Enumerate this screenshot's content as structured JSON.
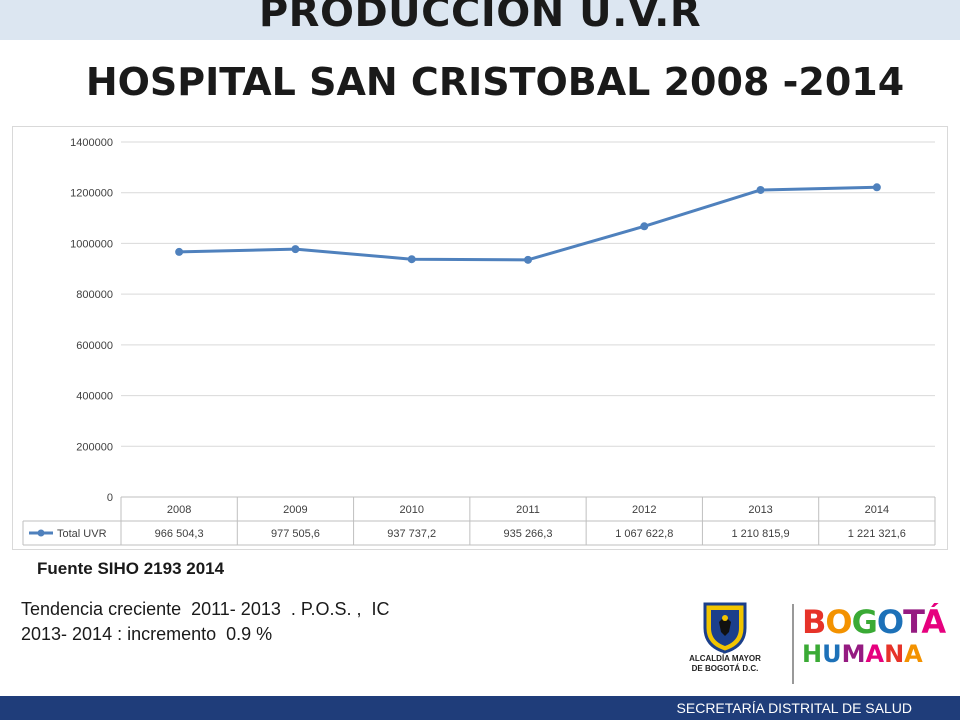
{
  "slide": {
    "title_line1": "PRODUCCION U.V.R",
    "title_line2": "HOSPITAL  SAN CRISTOBAL 2008 -2014",
    "source": "Fuente SIHO 2193 2014",
    "note_line1": "Tendencia creciente  2011- 2013  . P.O.S. ,  IC",
    "note_line2": "2013- 2014 : incremento  0.9 %",
    "footer": "SECRETARÍA DISTRITAL DE SALUD"
  },
  "logos": {
    "crest_label_line1": "ALCALDÍA MAYOR",
    "crest_label_line2": "DE BOGOTÁ D.C.",
    "brand_line1": "BOGOTÁ",
    "brand_line2": "HUMANA",
    "brand_colors": [
      "#e63329",
      "#f39200",
      "#3aaa35",
      "#1d71b8",
      "#951b81",
      "#e6007e"
    ]
  },
  "chart_data": {
    "type": "line",
    "categories": [
      "2008",
      "2009",
      "2010",
      "2011",
      "2012",
      "2013",
      "2014"
    ],
    "series": [
      {
        "name": "Total UVR",
        "values": [
          966504.3,
          977505.6,
          937737.2,
          935266.3,
          1067622.8,
          1210815.9,
          1221321.6
        ],
        "labels": [
          "966 504,3",
          "977 505,6",
          "937 737,2",
          "935 266,3",
          "1 067 622,8",
          "1 210 815,9",
          "1 221 321,6"
        ],
        "color": "#4f81bd"
      }
    ],
    "yticks": [
      "0",
      "200000",
      "400000",
      "600000",
      "800000",
      "1000000",
      "1200000",
      "1400000"
    ],
    "ylim": [
      0,
      1400000
    ],
    "grid": true,
    "data_table": true
  }
}
